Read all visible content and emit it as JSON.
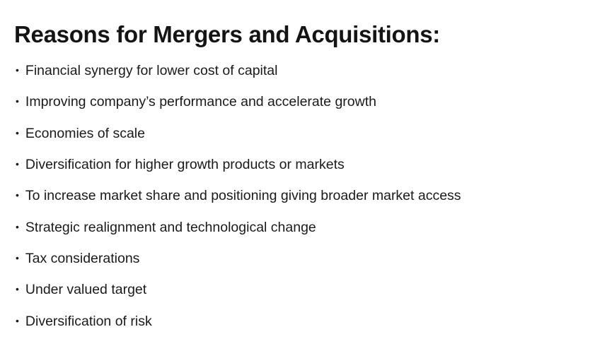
{
  "page": {
    "title": "Reasons for Mergers and Acquisitions:",
    "bullet_char": "•",
    "text_color": "#1a1a1a",
    "background_color": "#ffffff"
  },
  "list": {
    "items": [
      "Financial synergy for lower cost of capital",
      "Improving company’s performance and accelerate growth",
      "Economies of scale",
      "Diversification for higher growth products or markets",
      "To increase market share and positioning giving broader market access",
      "Strategic realignment and technological change",
      "Tax considerations",
      "Under valued target",
      "Diversification of risk"
    ]
  }
}
